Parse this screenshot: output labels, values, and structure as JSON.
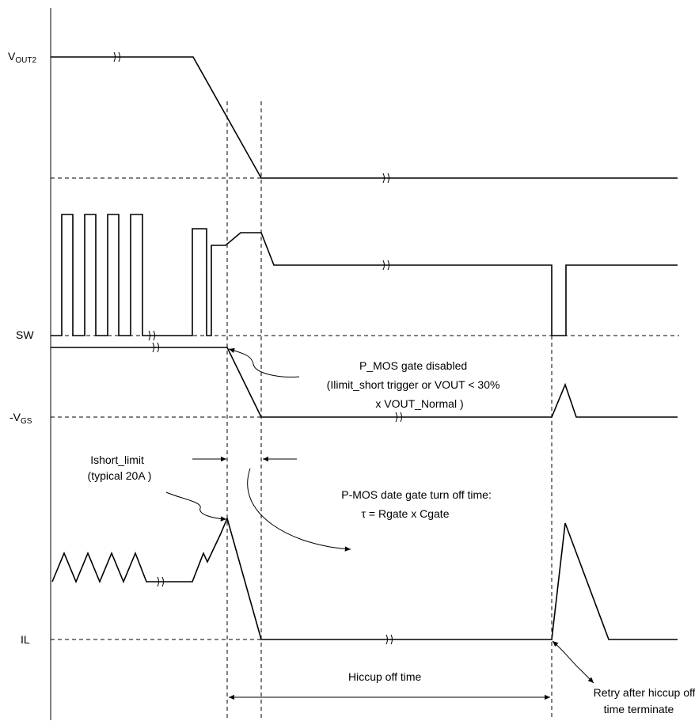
{
  "signals": {
    "vout2": {
      "main": "V",
      "sub": "OUT2"
    },
    "sw": {
      "label": "SW"
    },
    "vgs": {
      "main": "-V",
      "sub": "GS"
    },
    "il": {
      "label": "IL"
    }
  },
  "annotations": {
    "pmos_gate_disabled": [
      "P_MOS gate disabled",
      "(Ilimit_short trigger or VOUT < 30%",
      "x VOUT_Normal )"
    ],
    "ishort_limit": [
      "Ishort_limit",
      "(typical 20A )"
    ],
    "turn_off_time": [
      "P-MOS date gate turn off time:",
      "τ = Rgate x Cgate"
    ],
    "hiccup_off_time": "Hiccup off time",
    "retry": [
      "Retry after hiccup off",
      "time terminate"
    ]
  }
}
